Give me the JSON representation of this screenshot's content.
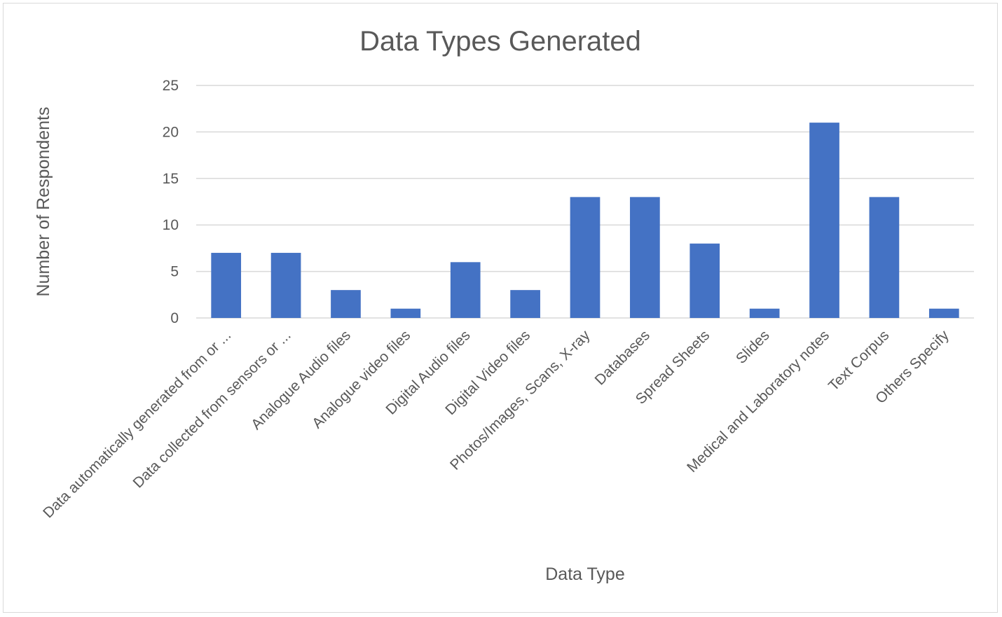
{
  "chart_data": {
    "type": "bar",
    "title": "Data Types Generated",
    "xlabel": "Data Type",
    "ylabel": "Number of Respondents",
    "ylim": [
      0,
      25
    ],
    "yticks": [
      "0",
      "5",
      "10",
      "15",
      "20",
      "25"
    ],
    "grid": true,
    "legend": "none",
    "bar_color": "#4472C4",
    "categories": [
      "Data automatically generated from or ...",
      "Data collected from sensors or ...",
      "Analogue Audio files",
      "Analogue video files",
      "Digital Audio files",
      "Digital Video files",
      "Photos/Images, Scans, X-ray",
      "Databases",
      "Spread Sheets",
      "Slides",
      "Medical and Laboratory notes",
      "Text Corpus",
      "Others Specify"
    ],
    "values": [
      7,
      7,
      3,
      1,
      6,
      3,
      13,
      13,
      8,
      1,
      21,
      13,
      1
    ]
  }
}
